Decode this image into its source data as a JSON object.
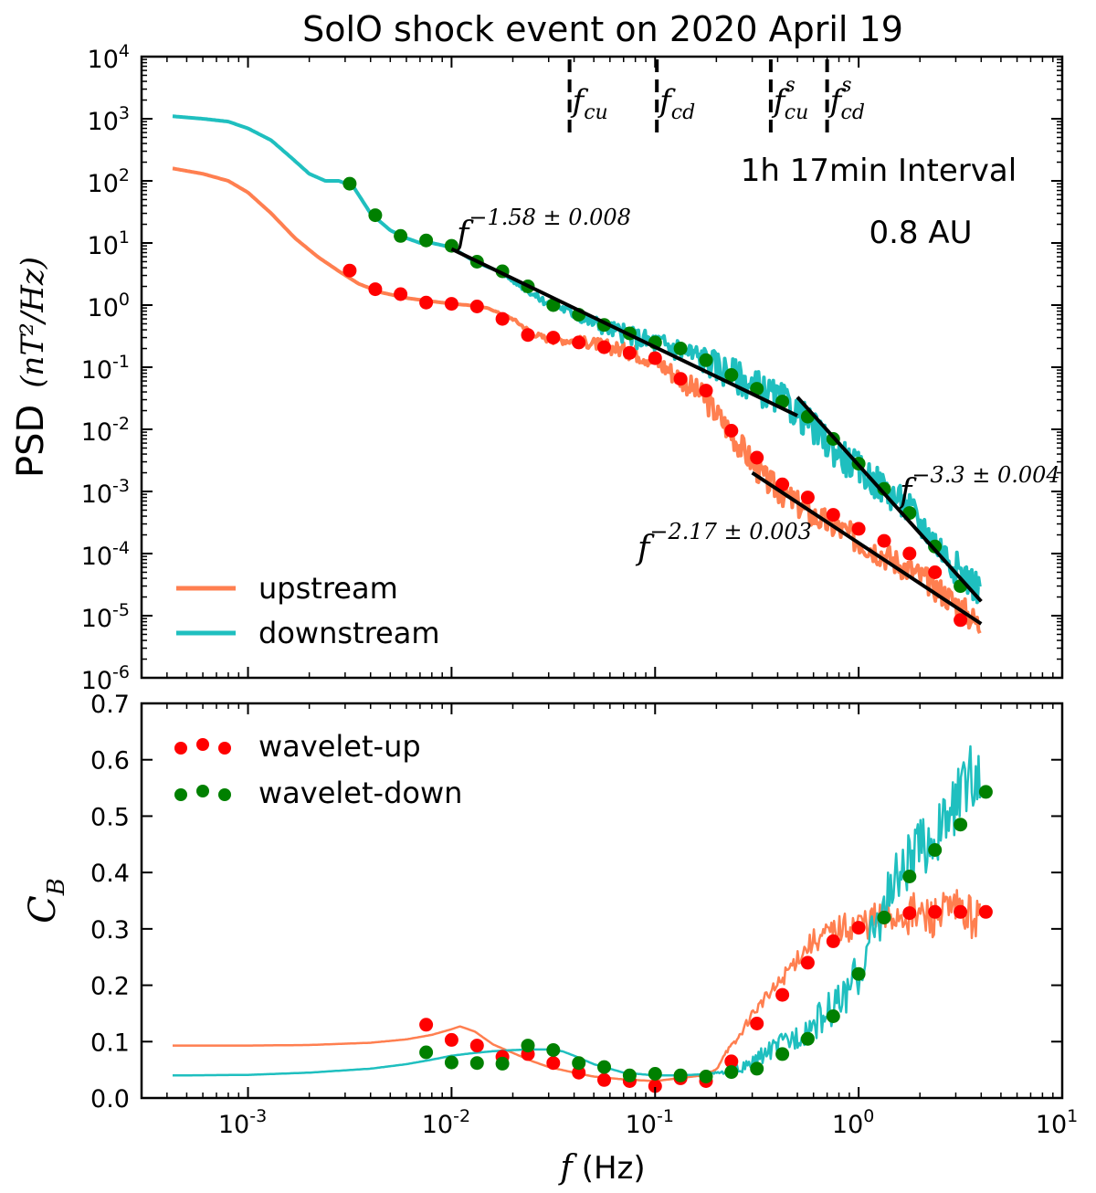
{
  "title": "SolO shock event on 2020 April 19",
  "chart_data": [
    {
      "type": "line",
      "panel": "top",
      "ylabel": "PSD (nT²/Hz)",
      "ylabel_prefix": "PSD",
      "ylabel_math": "(nT²/Hz)",
      "xscale": "log",
      "yscale": "log",
      "xlim": [
        0.0003,
        10
      ],
      "ylim": [
        1e-06,
        10000.0
      ],
      "yticks": [
        1e-06,
        1e-05,
        0.0001,
        0.001,
        0.01,
        0.1,
        1,
        10,
        100,
        1000,
        10000
      ],
      "ytick_labels": [
        {
          "base": "10",
          "exp": "-6"
        },
        {
          "base": "10",
          "exp": "-5"
        },
        {
          "base": "10",
          "exp": "-4"
        },
        {
          "base": "10",
          "exp": "-3"
        },
        {
          "base": "10",
          "exp": "-2"
        },
        {
          "base": "10",
          "exp": "-1"
        },
        {
          "base": "10",
          "exp": "0"
        },
        {
          "base": "10",
          "exp": "1"
        },
        {
          "base": "10",
          "exp": "2"
        },
        {
          "base": "10",
          "exp": "3"
        },
        {
          "base": "10",
          "exp": "4"
        }
      ],
      "legend_position": "lower-left",
      "annotations": {
        "interval": "1h 17min Interval",
        "distance": "0.8 AU",
        "fit_low": {
          "base": "f",
          "exp": "−1.58 ± 0.008",
          "x": 0.0105,
          "y": 15
        },
        "fit_down_high": {
          "base": "f",
          "exp": "−3.3 ± 0.004",
          "x": 1.6,
          "y": 0.001
        },
        "fit_up_high": {
          "base": "f",
          "exp": "−2.17 ± 0.003",
          "x": 0.0175,
          "y": 0.00011
        }
      },
      "vlines": [
        {
          "x": 0.038,
          "label": "f",
          "sub": "cu",
          "sup": ""
        },
        {
          "x": 0.102,
          "label": "f",
          "sub": "cd",
          "sup": ""
        },
        {
          "x": 0.37,
          "label": "f",
          "sub": "cu",
          "sup": "s"
        },
        {
          "x": 0.7,
          "label": "f",
          "sub": "cd",
          "sup": "s"
        }
      ],
      "series": [
        {
          "name": "upstream",
          "color": "#ff7f50",
          "style": "line",
          "x": [
            0.00042,
            0.0006,
            0.0008,
            0.001,
            0.0013,
            0.0017,
            0.0022,
            0.0028,
            0.0035,
            0.0045,
            0.006,
            0.008,
            0.01,
            0.012,
            0.015,
            0.02,
            0.025,
            0.03,
            0.04,
            0.05,
            0.06,
            0.08,
            0.1,
            0.13,
            0.17,
            0.22,
            0.28,
            0.35,
            0.45,
            0.6,
            0.8,
            1.0,
            1.3,
            1.7,
            2.2,
            3.0,
            4.0
          ],
          "y": [
            160,
            130,
            100,
            65,
            30,
            12,
            6,
            3.5,
            2.2,
            1.6,
            1.3,
            1.15,
            1.05,
            1.0,
            0.9,
            0.6,
            0.35,
            0.28,
            0.27,
            0.24,
            0.21,
            0.17,
            0.13,
            0.07,
            0.035,
            0.012,
            0.004,
            0.0015,
            0.0008,
            0.0004,
            0.00025,
            0.00016,
            0.0001,
            6e-05,
            3.5e-05,
            1.6e-05,
            6.5e-06
          ]
        },
        {
          "name": "downstream",
          "color": "#1fbfbf",
          "style": "line",
          "x": [
            0.00042,
            0.0006,
            0.0008,
            0.001,
            0.0013,
            0.0016,
            0.002,
            0.0024,
            0.0028,
            0.0033,
            0.004,
            0.005,
            0.006,
            0.007,
            0.008,
            0.01,
            0.013,
            0.017,
            0.022,
            0.028,
            0.035,
            0.045,
            0.06,
            0.08,
            0.1,
            0.13,
            0.17,
            0.22,
            0.28,
            0.35,
            0.45,
            0.55,
            0.7,
            0.9,
            1.1,
            1.4,
            1.8,
            2.3,
            3.0,
            4.0
          ],
          "y": [
            1100,
            1000,
            900,
            700,
            450,
            250,
            130,
            100,
            100,
            80,
            30,
            16,
            12,
            10,
            10,
            8.5,
            5,
            3.5,
            2.0,
            1.2,
            0.9,
            0.6,
            0.42,
            0.3,
            0.25,
            0.2,
            0.14,
            0.09,
            0.06,
            0.04,
            0.025,
            0.014,
            0.006,
            0.003,
            0.0018,
            0.001,
            0.0005,
            0.00018,
            6e-05,
            2.5e-05
          ]
        },
        {
          "name": "wavelet-up",
          "color": "#ff0000",
          "style": "markers",
          "x": [
            0.00316,
            0.00422,
            0.00562,
            0.0075,
            0.01,
            0.01334,
            0.01778,
            0.02371,
            0.03162,
            0.04217,
            0.05623,
            0.07499,
            0.1,
            0.13335,
            0.17783,
            0.23714,
            0.31623,
            0.4217,
            0.56234,
            0.74989,
            1.0,
            1.33352,
            1.77828,
            2.37137,
            3.16228
          ],
          "y": [
            3.6,
            1.8,
            1.5,
            1.1,
            1.05,
            0.95,
            0.6,
            0.33,
            0.3,
            0.25,
            0.21,
            0.17,
            0.14,
            0.065,
            0.042,
            0.0095,
            0.0035,
            0.0013,
            0.0008,
            0.00042,
            0.00025,
            0.00016,
            0.0001,
            5e-05,
            8.5e-06
          ]
        },
        {
          "name": "wavelet-down",
          "color": "#008000",
          "style": "markers",
          "x": [
            0.00316,
            0.00422,
            0.00562,
            0.0075,
            0.01,
            0.01334,
            0.01778,
            0.02371,
            0.03162,
            0.04217,
            0.05623,
            0.07499,
            0.1,
            0.13335,
            0.17783,
            0.23714,
            0.31623,
            0.4217,
            0.56234,
            0.74989,
            1.0,
            1.33352,
            1.77828,
            2.37137,
            3.16228
          ],
          "y": [
            90,
            28,
            13,
            11,
            9,
            5,
            3.5,
            2.0,
            1.0,
            0.7,
            0.48,
            0.35,
            0.25,
            0.2,
            0.13,
            0.075,
            0.045,
            0.028,
            0.016,
            0.007,
            0.0028,
            0.0011,
            0.00045,
            0.00013,
            3e-05
          ]
        },
        {
          "name": "fit-low",
          "color": "#000000",
          "style": "fit",
          "x": [
            0.01,
            0.5
          ],
          "y": [
            8.0,
            0.0166
          ]
        },
        {
          "name": "fit-down-high",
          "color": "#000000",
          "style": "fit",
          "x": [
            0.5,
            4.0
          ],
          "y": [
            0.033,
            1.7e-05
          ]
        },
        {
          "name": "fit-up-high",
          "color": "#000000",
          "style": "fit",
          "x": [
            0.3,
            4.0
          ],
          "y": [
            0.002,
            7.4e-06
          ]
        }
      ]
    },
    {
      "type": "line",
      "panel": "bottom",
      "xlabel": "(Hz)",
      "xlabel_var": "f",
      "ylabel": "C_B",
      "ylabel_base": "C",
      "ylabel_sub": "B",
      "xscale": "log",
      "xlim": [
        0.0003,
        10
      ],
      "ylim": [
        0.0,
        0.7
      ],
      "xticks": [
        0.001,
        0.01,
        0.1,
        1,
        10
      ],
      "xtick_labels": [
        {
          "base": "10",
          "exp": "-3"
        },
        {
          "base": "10",
          "exp": "-2"
        },
        {
          "base": "10",
          "exp": "-1"
        },
        {
          "base": "10",
          "exp": "0"
        },
        {
          "base": "10",
          "exp": "1"
        }
      ],
      "yticks": [
        0.0,
        0.1,
        0.2,
        0.3,
        0.4,
        0.5,
        0.6,
        0.7
      ],
      "ytick_labels": [
        "0.0",
        "0.1",
        "0.2",
        "0.3",
        "0.4",
        "0.5",
        "0.6",
        "0.7"
      ],
      "legend_position": "upper-left",
      "series": [
        {
          "name": "upstream",
          "color": "#ff7f50",
          "style": "line",
          "x": [
            0.00042,
            0.001,
            0.002,
            0.004,
            0.006,
            0.008,
            0.01,
            0.011,
            0.013,
            0.016,
            0.02,
            0.025,
            0.03,
            0.04,
            0.05,
            0.07,
            0.1,
            0.13,
            0.17,
            0.2,
            0.22,
            0.25,
            0.3,
            0.4,
            0.5,
            0.6,
            0.8,
            1.0,
            1.3,
            1.7,
            2.2,
            3.0,
            4.0
          ],
          "y": [
            0.093,
            0.093,
            0.094,
            0.098,
            0.104,
            0.112,
            0.122,
            0.127,
            0.118,
            0.095,
            0.08,
            0.065,
            0.055,
            0.045,
            0.038,
            0.033,
            0.03,
            0.035,
            0.04,
            0.05,
            0.08,
            0.1,
            0.15,
            0.2,
            0.25,
            0.28,
            0.3,
            0.31,
            0.32,
            0.33,
            0.32,
            0.33,
            0.32
          ]
        },
        {
          "name": "downstream",
          "color": "#1fbfbf",
          "style": "line",
          "x": [
            0.00042,
            0.001,
            0.002,
            0.004,
            0.006,
            0.008,
            0.01,
            0.013,
            0.016,
            0.02,
            0.025,
            0.03,
            0.035,
            0.04,
            0.05,
            0.07,
            0.1,
            0.13,
            0.17,
            0.22,
            0.28,
            0.35,
            0.45,
            0.6,
            0.8,
            1.0,
            1.2,
            1.5,
            2.0,
            2.5,
            3.0,
            3.5,
            4.0
          ],
          "y": [
            0.04,
            0.041,
            0.045,
            0.052,
            0.06,
            0.068,
            0.075,
            0.08,
            0.083,
            0.085,
            0.086,
            0.086,
            0.083,
            0.075,
            0.06,
            0.045,
            0.04,
            0.04,
            0.042,
            0.045,
            0.055,
            0.08,
            0.1,
            0.13,
            0.17,
            0.22,
            0.3,
            0.38,
            0.44,
            0.47,
            0.52,
            0.57,
            0.58
          ]
        },
        {
          "name": "wavelet-up",
          "color": "#ff0000",
          "style": "markers",
          "x": [
            0.0075,
            0.01,
            0.01334,
            0.01778,
            0.02371,
            0.03162,
            0.04217,
            0.05623,
            0.07499,
            0.1,
            0.13335,
            0.17783,
            0.23714,
            0.31623,
            0.4217,
            0.56234,
            0.74989,
            1.0,
            1.33352,
            1.77828,
            2.37137,
            3.16228,
            4.21697
          ],
          "y": [
            0.13,
            0.103,
            0.093,
            0.073,
            0.078,
            0.062,
            0.045,
            0.032,
            0.03,
            0.021,
            0.035,
            0.03,
            0.065,
            0.132,
            0.183,
            0.24,
            0.278,
            0.302,
            0.32,
            0.328,
            0.33,
            0.33,
            0.33
          ]
        },
        {
          "name": "wavelet-down",
          "color": "#008000",
          "style": "markers",
          "x": [
            0.0075,
            0.01,
            0.01334,
            0.01778,
            0.02371,
            0.03162,
            0.04217,
            0.05623,
            0.07499,
            0.1,
            0.13335,
            0.17783,
            0.23714,
            0.31623,
            0.4217,
            0.56234,
            0.74989,
            1.0,
            1.33352,
            1.77828,
            2.37137,
            3.16228,
            4.21697
          ],
          "y": [
            0.081,
            0.063,
            0.062,
            0.061,
            0.093,
            0.085,
            0.062,
            0.055,
            0.04,
            0.043,
            0.04,
            0.038,
            0.046,
            0.052,
            0.078,
            0.105,
            0.145,
            0.22,
            0.32,
            0.393,
            0.44,
            0.485,
            0.543
          ]
        }
      ]
    }
  ]
}
